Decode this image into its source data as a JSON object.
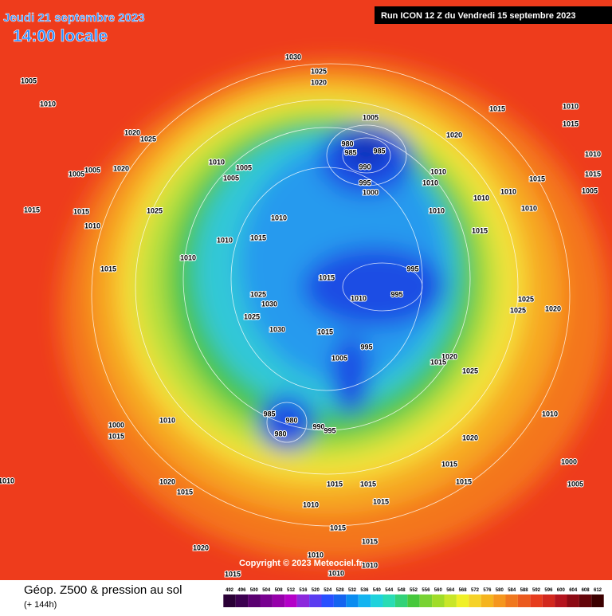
{
  "header": {
    "date": "Jeudi 21 septembre 2023",
    "time": "14:00 locale",
    "run": "Run ICON 12 Z du Vendredi 15 septembre 2023"
  },
  "footer": {
    "title": "Géop. Z500 & pression au sol",
    "subtitle": "(+ 144h)",
    "copyright": "Copyright © 2023 Meteociel.fr"
  },
  "scale": [
    492,
    496,
    500,
    504,
    508,
    512,
    516,
    520,
    524,
    528,
    532,
    536,
    540,
    544,
    548,
    552,
    556,
    560,
    564,
    568,
    572,
    576,
    580,
    584,
    588,
    592,
    596,
    600,
    604,
    608,
    612
  ],
  "map": {
    "pressure_labels": [
      1030,
      1025,
      1020,
      1005,
      1010,
      1020,
      1025,
      1005,
      985,
      980,
      985,
      990,
      995,
      1000,
      1020,
      1010,
      1010,
      1010,
      1010,
      1010,
      1015,
      1015,
      1010,
      1015,
      1010,
      1015,
      1005,
      1015,
      1010,
      1005,
      1005,
      1020,
      1005,
      1005,
      1015,
      1015,
      1025,
      1010,
      1015,
      1010,
      1010,
      1015,
      1010,
      1015,
      1010,
      995,
      995,
      1025,
      1030,
      1025,
      1030,
      1015,
      995,
      1005,
      985,
      980,
      980,
      990,
      995,
      1010,
      1015,
      1000,
      1020,
      1015,
      1010,
      1020,
      1015,
      1010,
      1015,
      1015,
      1015,
      1015,
      1020,
      1025,
      1015,
      1020,
      1015,
      1015,
      1005,
      1000,
      1010,
      1025,
      1020,
      1015,
      1010,
      1010,
      1010,
      1010,
      1025
    ]
  }
}
